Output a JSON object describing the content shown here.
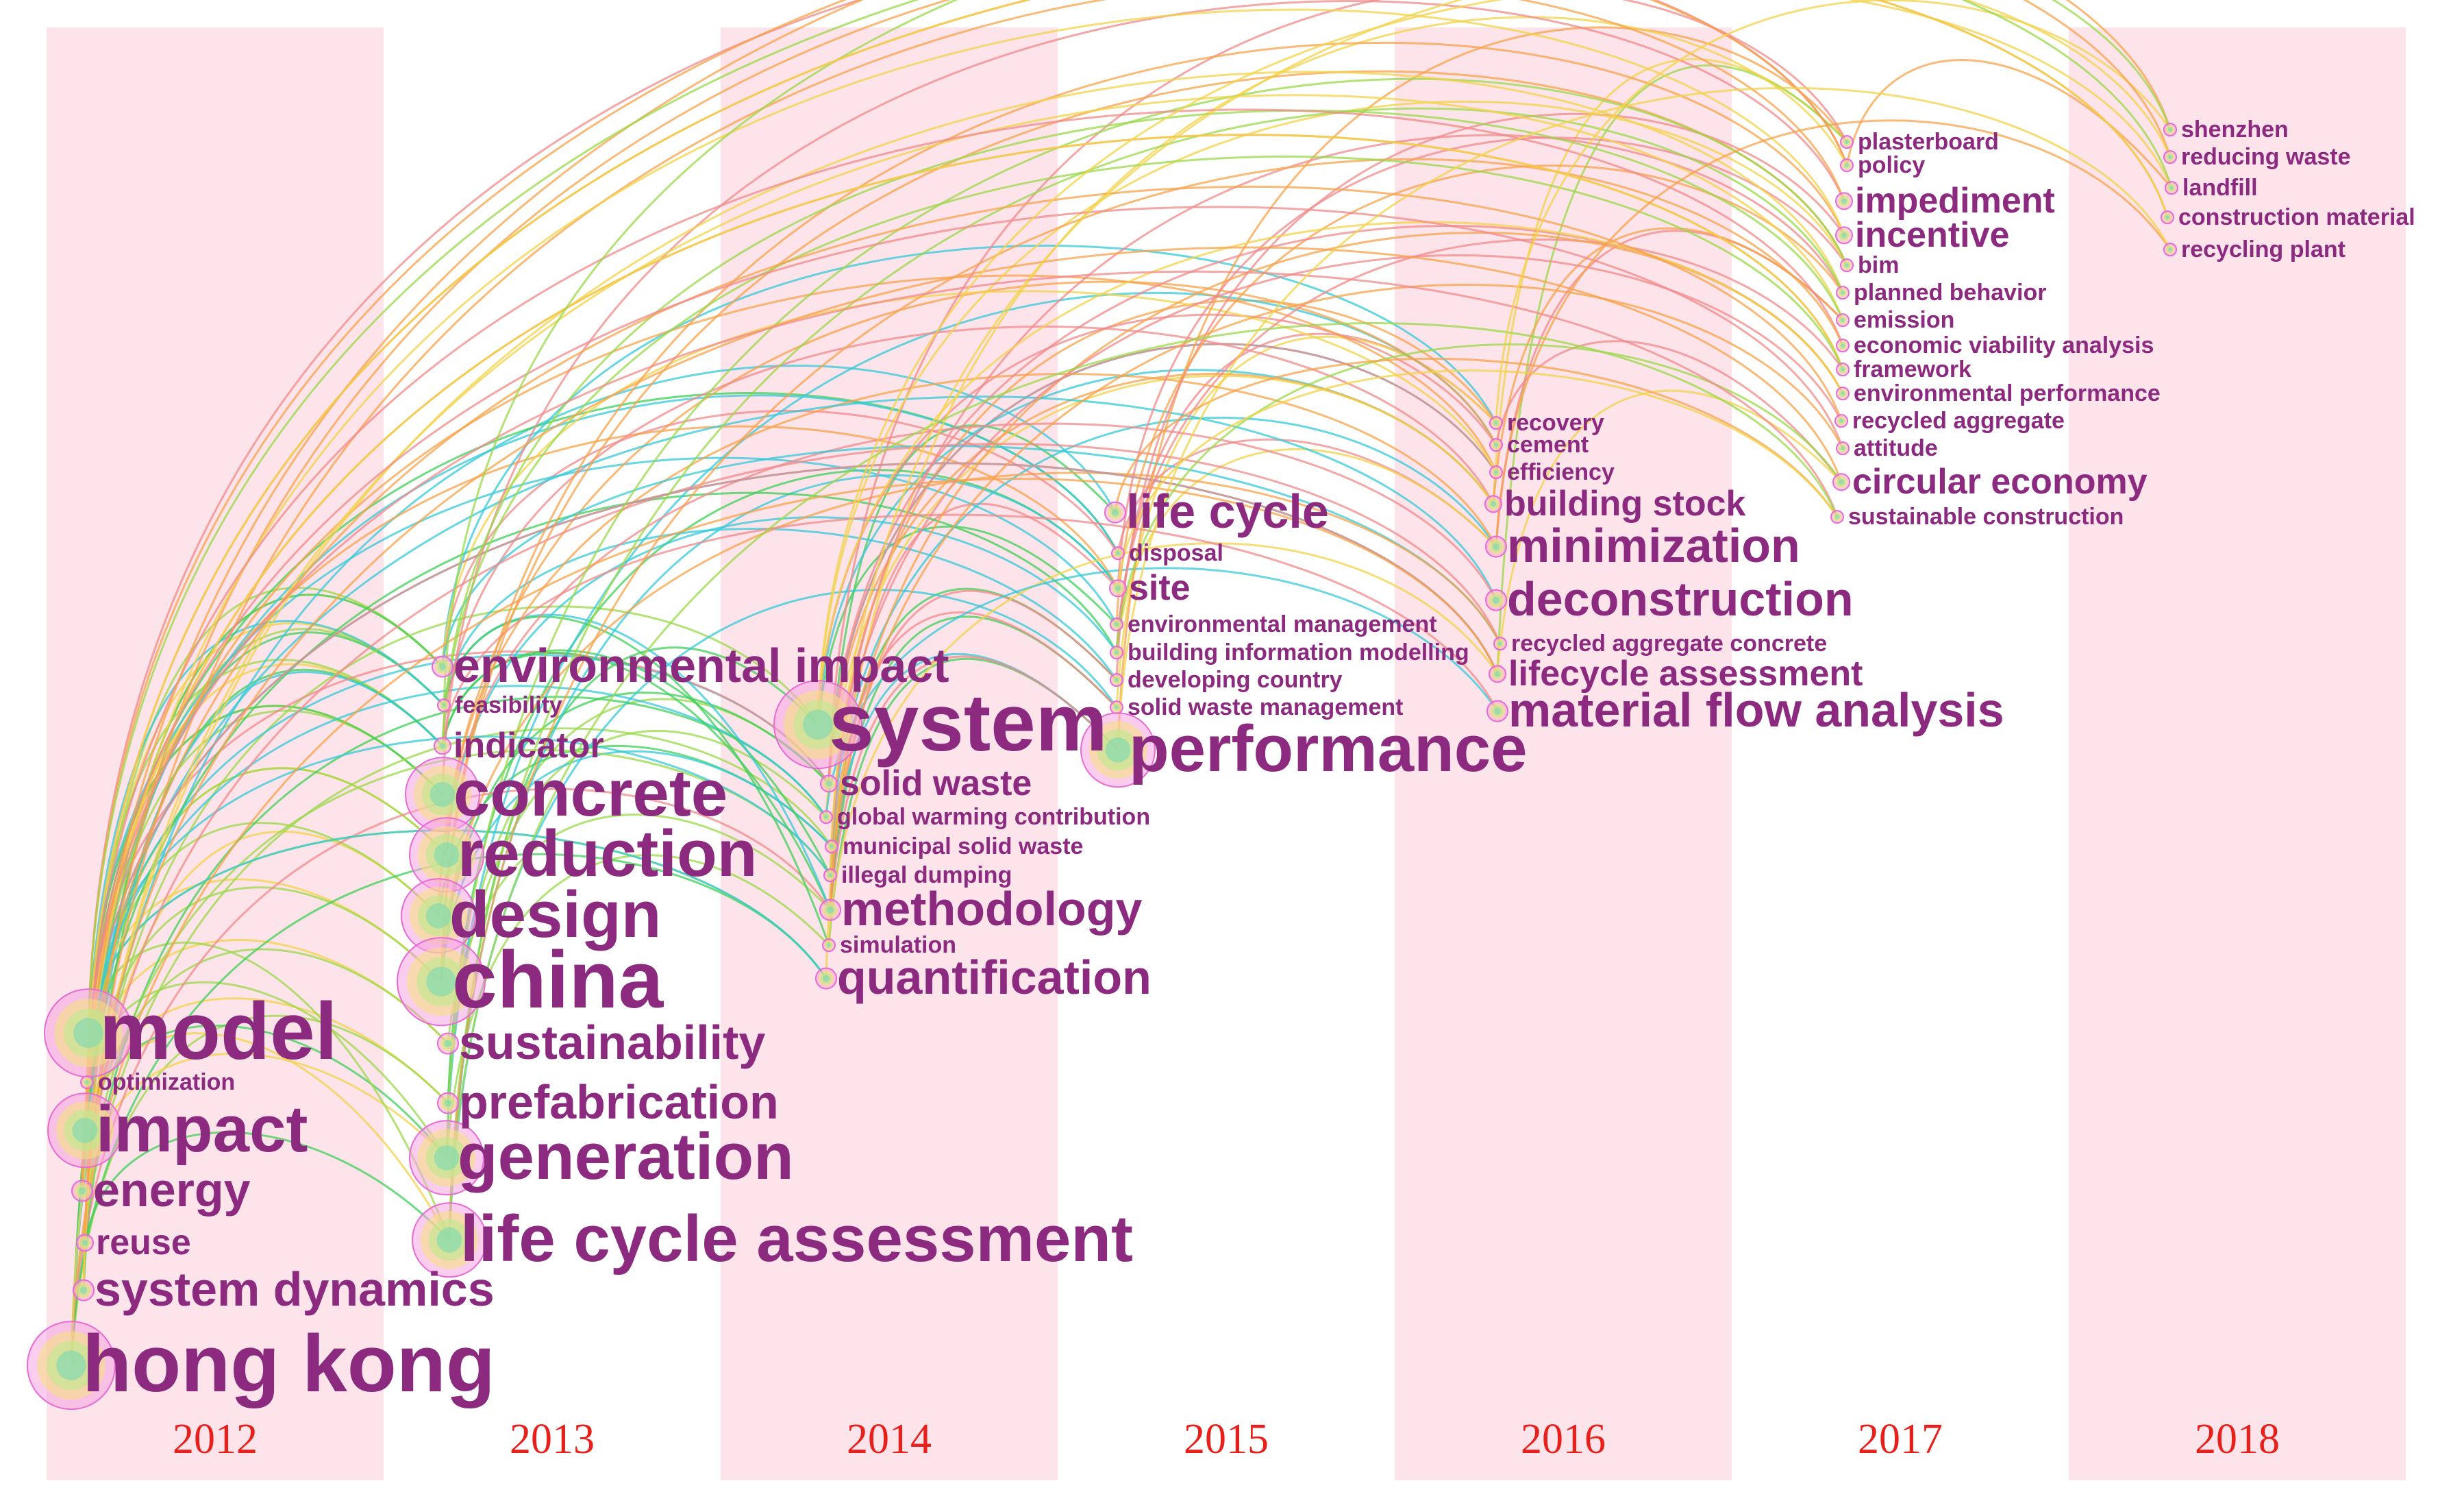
{
  "colors": {
    "band": "#fde4ea",
    "term": "#8b2a7f",
    "year": "#e8201b"
  },
  "years": [
    "2012",
    "2013",
    "2014",
    "2015",
    "2016",
    "2017",
    "2018"
  ],
  "terms": [
    {
      "id": "hong-kong",
      "text": "hong kong",
      "year": 0,
      "weight": 5
    },
    {
      "id": "model",
      "text": "model",
      "year": 0,
      "weight": 5
    },
    {
      "id": "optimization",
      "text": "optimization",
      "year": 0,
      "weight": 1
    },
    {
      "id": "impact",
      "text": "impact",
      "year": 0,
      "weight": 4
    },
    {
      "id": "energy",
      "text": "energy",
      "year": 0,
      "weight": 3
    },
    {
      "id": "reuse",
      "text": "reuse",
      "year": 0,
      "weight": 2
    },
    {
      "id": "system-dynamics",
      "text": "system dynamics",
      "year": 0,
      "weight": 3
    },
    {
      "id": "environmental-impact",
      "text": "environmental impact",
      "year": 1,
      "weight": 3
    },
    {
      "id": "feasibility",
      "text": "feasibility",
      "year": 1,
      "weight": 1
    },
    {
      "id": "indicator",
      "text": "indicator",
      "year": 1,
      "weight": 2
    },
    {
      "id": "concrete",
      "text": "concrete",
      "year": 1,
      "weight": 4
    },
    {
      "id": "reduction",
      "text": "reduction",
      "year": 1,
      "weight": 4
    },
    {
      "id": "design",
      "text": "design",
      "year": 1,
      "weight": 4
    },
    {
      "id": "china",
      "text": "china",
      "year": 1,
      "weight": 5
    },
    {
      "id": "sustainability",
      "text": "sustainability",
      "year": 1,
      "weight": 3
    },
    {
      "id": "prefabrication",
      "text": "prefabrication",
      "year": 1,
      "weight": 3
    },
    {
      "id": "generation",
      "text": "generation",
      "year": 1,
      "weight": 4
    },
    {
      "id": "life-cycle-assessment",
      "text": "life cycle assessment",
      "year": 1,
      "weight": 4
    },
    {
      "id": "system",
      "text": "system",
      "year": 2,
      "weight": 5
    },
    {
      "id": "solid-waste",
      "text": "solid waste",
      "year": 2,
      "weight": 2
    },
    {
      "id": "global-warming-contribution",
      "text": "global warming contribution",
      "year": 2,
      "weight": 1
    },
    {
      "id": "municipal-solid-waste",
      "text": "municipal solid waste",
      "year": 2,
      "weight": 1
    },
    {
      "id": "illegal-dumping",
      "text": "illegal dumping",
      "year": 2,
      "weight": 1
    },
    {
      "id": "methodology",
      "text": "methodology",
      "year": 2,
      "weight": 3
    },
    {
      "id": "simulation",
      "text": "simulation",
      "year": 2,
      "weight": 1
    },
    {
      "id": "quantification",
      "text": "quantification",
      "year": 2,
      "weight": 3
    },
    {
      "id": "life-cycle",
      "text": "life cycle",
      "year": 3,
      "weight": 3
    },
    {
      "id": "disposal",
      "text": "disposal",
      "year": 3,
      "weight": 1
    },
    {
      "id": "site",
      "text": "site",
      "year": 3,
      "weight": 2
    },
    {
      "id": "environmental-management",
      "text": "environmental management",
      "year": 3,
      "weight": 1
    },
    {
      "id": "building-information-modelling",
      "text": "building information modelling",
      "year": 3,
      "weight": 1
    },
    {
      "id": "developing-country",
      "text": "developing country",
      "year": 3,
      "weight": 1
    },
    {
      "id": "solid-waste-management",
      "text": "solid waste management",
      "year": 3,
      "weight": 1
    },
    {
      "id": "performance",
      "text": "performance",
      "year": 3,
      "weight": 4
    },
    {
      "id": "recovery",
      "text": "recovery",
      "year": 4,
      "weight": 1
    },
    {
      "id": "cement",
      "text": "cement",
      "year": 4,
      "weight": 1
    },
    {
      "id": "efficiency",
      "text": "efficiency",
      "year": 4,
      "weight": 1
    },
    {
      "id": "building-stock",
      "text": "building stock",
      "year": 4,
      "weight": 2
    },
    {
      "id": "minimization",
      "text": "minimization",
      "year": 4,
      "weight": 3
    },
    {
      "id": "deconstruction",
      "text": "deconstruction",
      "year": 4,
      "weight": 3
    },
    {
      "id": "recycled-aggregate-concrete",
      "text": "recycled aggregate concrete",
      "year": 4,
      "weight": 1
    },
    {
      "id": "lifecycle-assessment",
      "text": "lifecycle assessment",
      "year": 4,
      "weight": 2
    },
    {
      "id": "material-flow-analysis",
      "text": "material flow analysis",
      "year": 4,
      "weight": 3
    },
    {
      "id": "plasterboard",
      "text": "plasterboard",
      "year": 5,
      "weight": 1
    },
    {
      "id": "policy",
      "text": "policy",
      "year": 5,
      "weight": 1
    },
    {
      "id": "impediment",
      "text": "impediment",
      "year": 5,
      "weight": 2
    },
    {
      "id": "incentive",
      "text": "incentive",
      "year": 5,
      "weight": 2
    },
    {
      "id": "bim",
      "text": "bim",
      "year": 5,
      "weight": 1
    },
    {
      "id": "planned-behavior",
      "text": "planned behavior",
      "year": 5,
      "weight": 1
    },
    {
      "id": "emission",
      "text": "emission",
      "year": 5,
      "weight": 1
    },
    {
      "id": "economic-viability-analysis",
      "text": "economic viability analysis",
      "year": 5,
      "weight": 1
    },
    {
      "id": "framework",
      "text": "framework",
      "year": 5,
      "weight": 1
    },
    {
      "id": "environmental-performance",
      "text": "environmental performance",
      "year": 5,
      "weight": 1
    },
    {
      "id": "recycled-aggregate",
      "text": "recycled aggregate",
      "year": 5,
      "weight": 1
    },
    {
      "id": "attitude",
      "text": "attitude",
      "year": 5,
      "weight": 1
    },
    {
      "id": "circular-economy",
      "text": "circular economy",
      "year": 5,
      "weight": 2
    },
    {
      "id": "sustainable-construction",
      "text": "sustainable construction",
      "year": 5,
      "weight": 1
    },
    {
      "id": "shenzhen",
      "text": "shenzhen",
      "year": 6,
      "weight": 1
    },
    {
      "id": "reducing-waste",
      "text": "reducing waste",
      "year": 6,
      "weight": 1
    },
    {
      "id": "landfill",
      "text": "landfill",
      "year": 6,
      "weight": 1
    },
    {
      "id": "construction-material",
      "text": "construction material",
      "year": 6,
      "weight": 1
    },
    {
      "id": "recycling-plant",
      "text": "recycling plant",
      "year": 6,
      "weight": 1
    }
  ]
}
